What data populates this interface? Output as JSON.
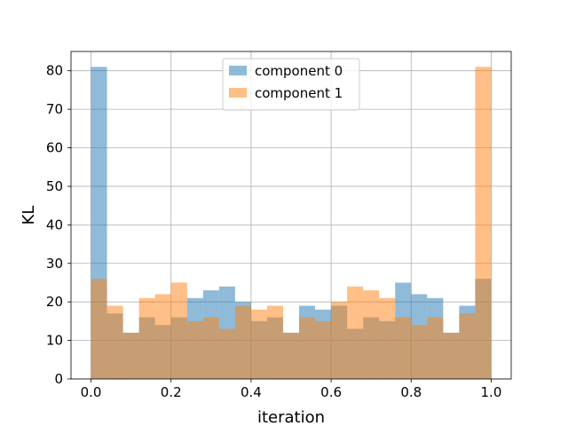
{
  "chart_data": {
    "type": "bar",
    "title": "",
    "xlabel": "iteration",
    "ylabel": "KL",
    "xlim": [
      -0.05,
      1.05
    ],
    "ylim": [
      0,
      85
    ],
    "xticks": [
      0.0,
      0.2,
      0.4,
      0.6,
      0.8,
      1.0
    ],
    "xtick_labels": [
      "0.0",
      "0.2",
      "0.4",
      "0.6",
      "0.8",
      "1.0"
    ],
    "yticks": [
      0,
      10,
      20,
      30,
      40,
      50,
      60,
      70,
      80
    ],
    "ytick_labels": [
      "0",
      "10",
      "20",
      "30",
      "40",
      "50",
      "60",
      "70",
      "80"
    ],
    "grid": true,
    "legend_position": "top-center",
    "bins": 25,
    "bin_range": [
      0.0,
      1.0
    ],
    "series": [
      {
        "name": "component 0",
        "color": "#1f77b4",
        "alpha": 0.5,
        "values": [
          81,
          17,
          12,
          16,
          14,
          16,
          21,
          23,
          24,
          20,
          15,
          16,
          12,
          19,
          18,
          19,
          13,
          16,
          15,
          25,
          22,
          21,
          12,
          19,
          26
        ]
      },
      {
        "name": "component 1",
        "color": "#ff7f0e",
        "alpha": 0.5,
        "values": [
          26,
          19,
          12,
          21,
          22,
          25,
          15,
          16,
          13,
          19,
          18,
          19,
          12,
          16,
          15,
          20,
          24,
          23,
          21,
          16,
          14,
          16,
          12,
          17,
          81
        ]
      }
    ]
  }
}
